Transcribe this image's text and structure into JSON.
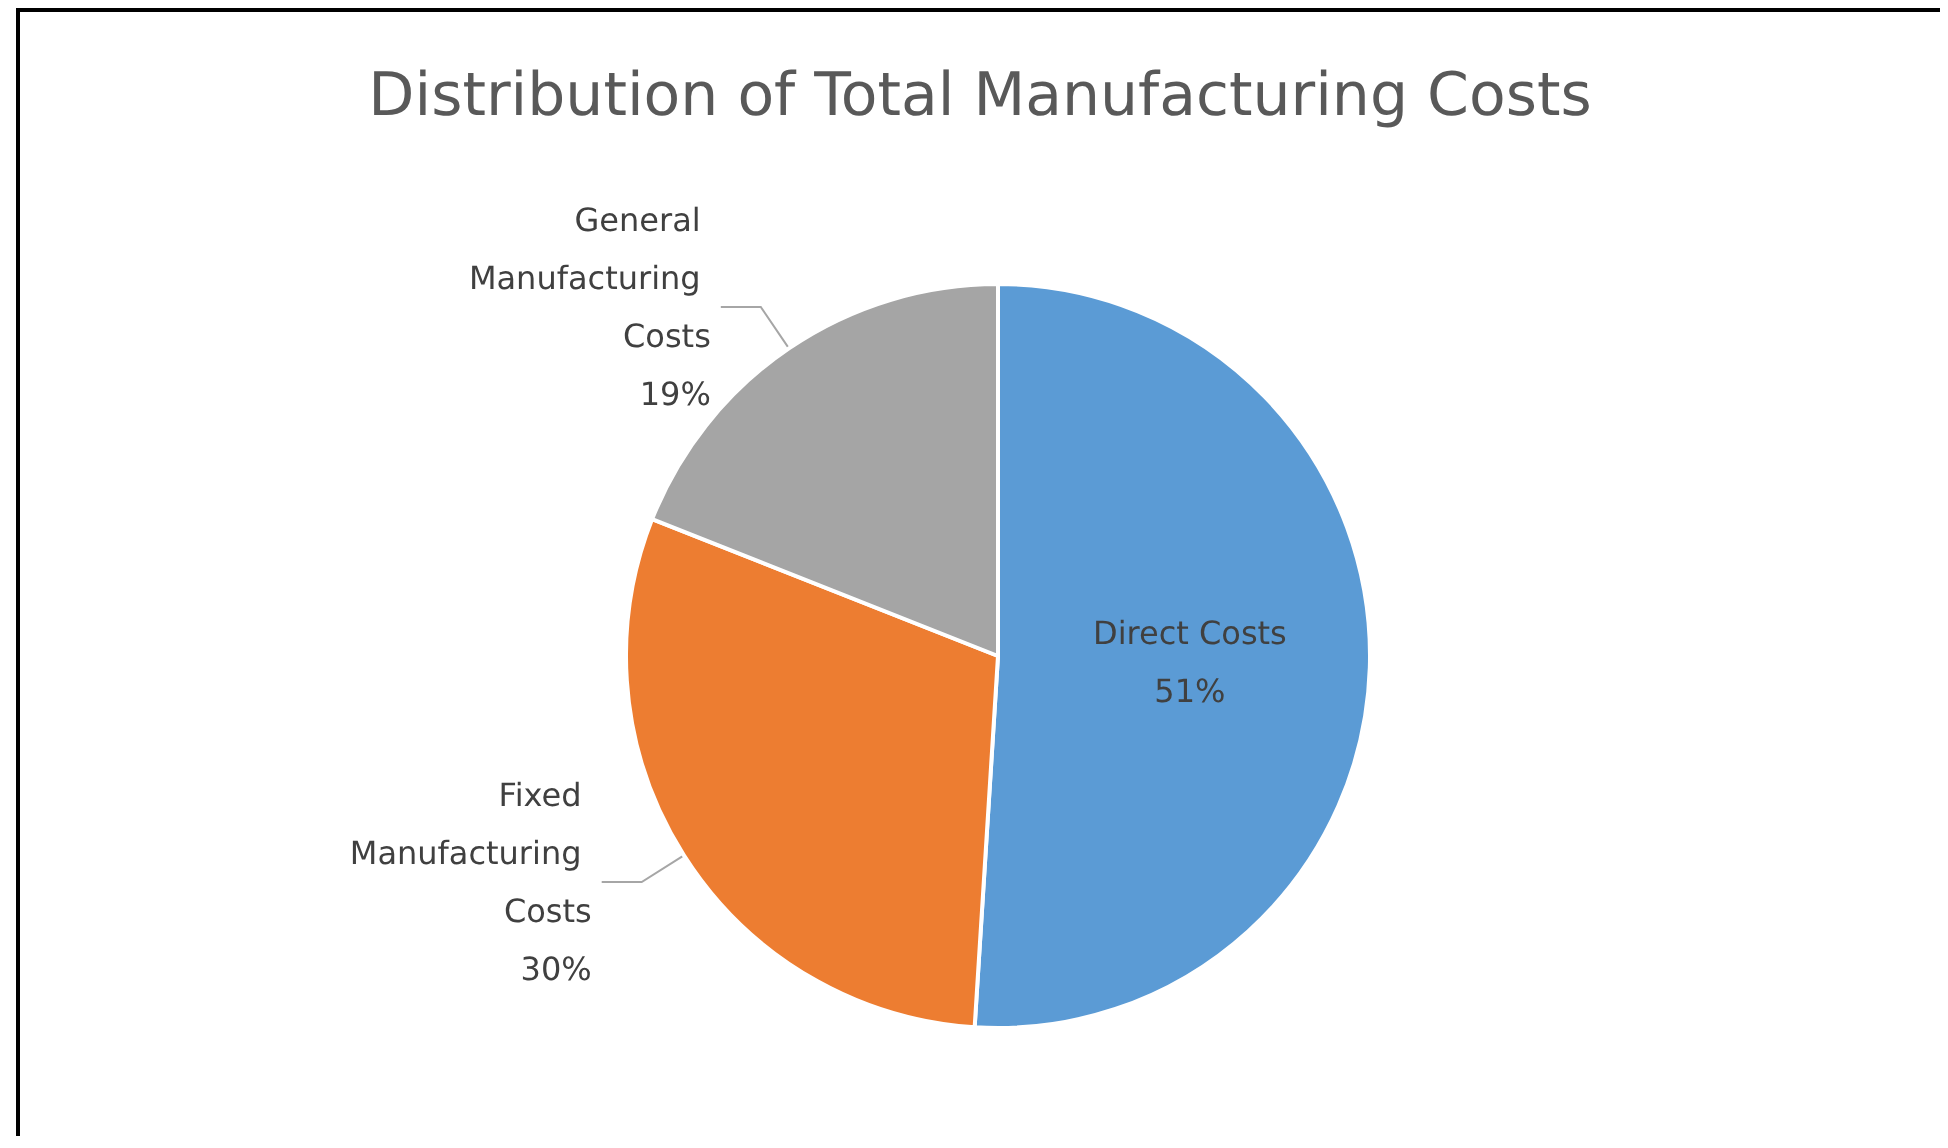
{
  "chart_data": {
    "type": "pie",
    "title": "Distribution of Total Manufacturing Costs",
    "categories": [
      "Direct Costs",
      "Fixed Manufacturing Costs",
      "General Manufacturing Costs"
    ],
    "values": [
      51,
      30,
      19
    ],
    "colors": [
      "#5b9bd5",
      "#ed7d31",
      "#a5a5a5"
    ],
    "value_labels": [
      "51%",
      "30%",
      "19%"
    ],
    "legend": false
  }
}
